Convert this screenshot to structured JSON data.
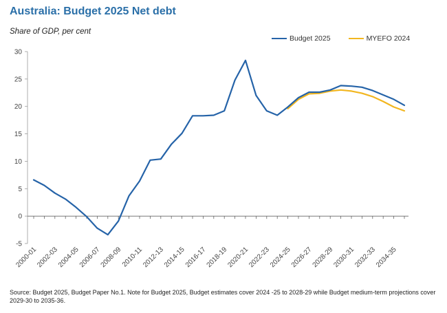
{
  "header": {
    "title": "Australia: Budget 2025 Net debt",
    "subtitle": "Share of GDP, per cent"
  },
  "footer": {
    "source": "Source: Budget 2025, Budget Paper No.1. Note for Budget 2025, Budget estimates cover 2024 -25 to 2028-29 while Budget medium-term projections cover 2029-30 to 2035-36."
  },
  "chart_data": {
    "type": "line",
    "title": "Australia: Budget 2025 Net debt",
    "ylabel": "Share of GDP, per cent",
    "xlabel": "",
    "ylim": [
      -5,
      30
    ],
    "yticks": [
      -5,
      0,
      5,
      10,
      15,
      20,
      25,
      30
    ],
    "grid": false,
    "legend_position": "top-right",
    "categories": [
      "2000-01",
      "2001-02",
      "2002-03",
      "2003-04",
      "2004-05",
      "2005-06",
      "2006-07",
      "2007-08",
      "2008-09",
      "2009-10",
      "2010-11",
      "2011-12",
      "2012-13",
      "2013-14",
      "2014-15",
      "2015-16",
      "2016-17",
      "2017-18",
      "2018-19",
      "2019-20",
      "2020-21",
      "2021-22",
      "2022-23",
      "2023-24",
      "2024-25",
      "2025-26",
      "2026-27",
      "2027-28",
      "2028-29",
      "2029-30",
      "2030-31",
      "2031-32",
      "2032-33",
      "2033-34",
      "2034-35",
      "2035-36"
    ],
    "xtick_labels": [
      "2000-01",
      "2002-03",
      "2004-05",
      "2006-07",
      "2008-09",
      "2010-11",
      "2012-13",
      "2014-15",
      "2016-17",
      "2018-19",
      "2020-21",
      "2022-23",
      "2024-25",
      "2026-27",
      "2028-29",
      "2030-31",
      "2032-33",
      "2034-35"
    ],
    "series": [
      {
        "name": "Budget 2025",
        "color": "#2563a8",
        "values": [
          6.6,
          5.6,
          4.2,
          3.1,
          1.6,
          -0.1,
          -2.2,
          -3.4,
          -0.9,
          3.7,
          6.4,
          10.2,
          10.4,
          13.1,
          15.1,
          18.3,
          18.3,
          18.4,
          19.2,
          24.8,
          28.4,
          22.0,
          19.2,
          18.4,
          19.9,
          21.6,
          22.6,
          22.6,
          23.0,
          23.8,
          23.7,
          23.5,
          22.9,
          22.1,
          21.3,
          20.2
        ]
      },
      {
        "name": "MYEFO 2024",
        "color": "#f2b61f",
        "values": [
          null,
          null,
          null,
          null,
          null,
          null,
          null,
          null,
          null,
          null,
          null,
          null,
          null,
          null,
          null,
          null,
          null,
          null,
          null,
          null,
          null,
          null,
          null,
          null,
          19.6,
          21.3,
          22.3,
          22.4,
          22.8,
          23.0,
          22.8,
          22.4,
          21.8,
          20.9,
          19.9,
          19.2
        ]
      }
    ]
  }
}
